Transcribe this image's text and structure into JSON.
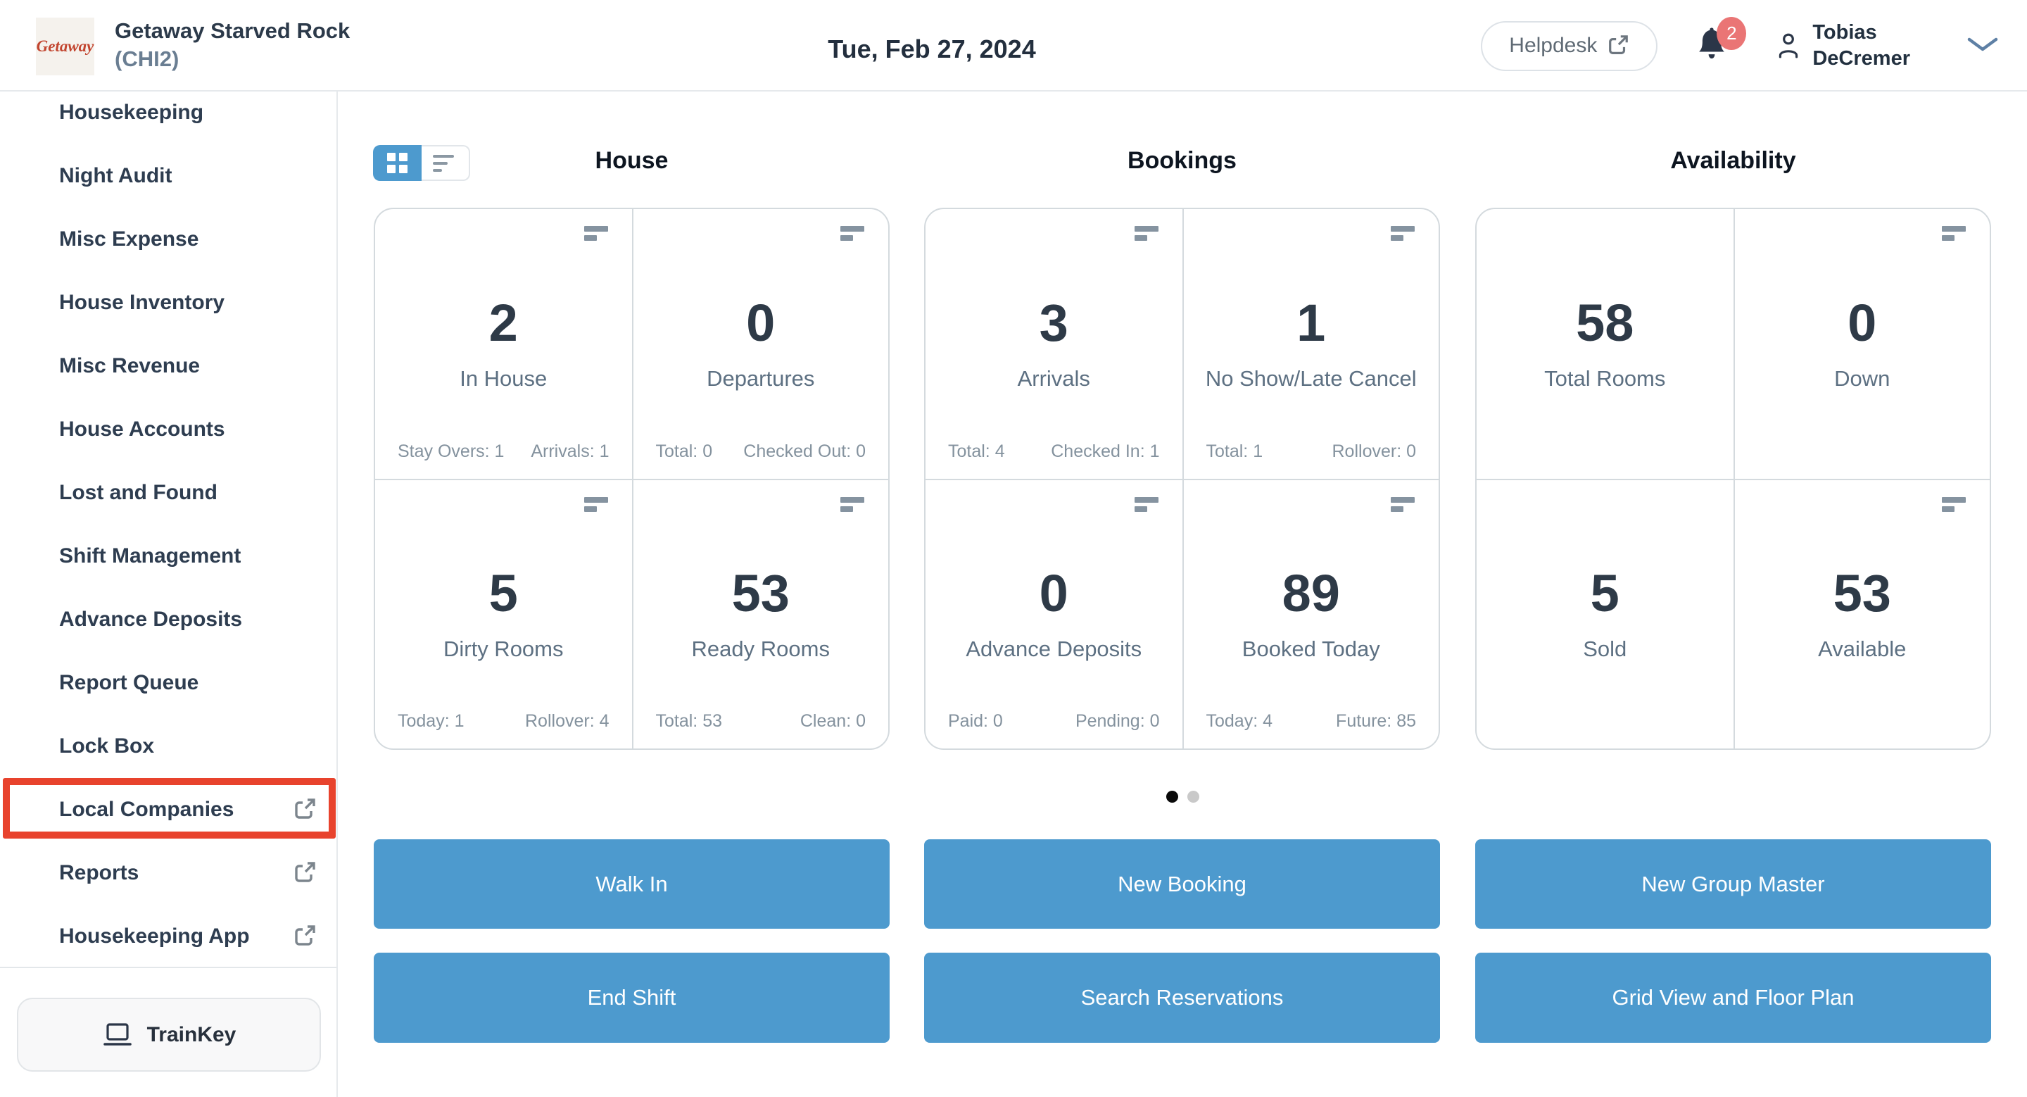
{
  "header": {
    "logo_text": "Getaway",
    "property_name": "Getaway Starved Rock",
    "property_code": "(CHI2)",
    "date": "Tue, Feb 27, 2024",
    "helpdesk_label": "Helpdesk",
    "notification_count": "2",
    "user_first_name": "Tobias",
    "user_last_name": "DeCremer"
  },
  "sidebar": {
    "items": [
      {
        "label": "Housekeeping",
        "external": false,
        "highlighted": false
      },
      {
        "label": "Night Audit",
        "external": false,
        "highlighted": false
      },
      {
        "label": "Misc Expense",
        "external": false,
        "highlighted": false
      },
      {
        "label": "House Inventory",
        "external": false,
        "highlighted": false
      },
      {
        "label": "Misc Revenue",
        "external": false,
        "highlighted": false
      },
      {
        "label": "House Accounts",
        "external": false,
        "highlighted": false
      },
      {
        "label": "Lost and Found",
        "external": false,
        "highlighted": false
      },
      {
        "label": "Shift Management",
        "external": false,
        "highlighted": false
      },
      {
        "label": "Advance Deposits",
        "external": false,
        "highlighted": false
      },
      {
        "label": "Report Queue",
        "external": false,
        "highlighted": false
      },
      {
        "label": "Lock Box",
        "external": false,
        "highlighted": false
      },
      {
        "label": "Local Companies",
        "external": true,
        "highlighted": true
      },
      {
        "label": "Reports",
        "external": true,
        "highlighted": false
      },
      {
        "label": "Housekeeping App",
        "external": true,
        "highlighted": false
      }
    ],
    "trainkey_label": "TrainKey"
  },
  "view_toggle": {
    "grid_active": true,
    "list_active": false
  },
  "dashboard": {
    "sections": [
      {
        "title": "House",
        "cards": [
          {
            "value": "2",
            "label": "In House",
            "stat_left": "Stay Overs: 1",
            "stat_right": "Arrivals: 1",
            "menu_icon": true
          },
          {
            "value": "0",
            "label": "Departures",
            "stat_left": "Total: 0",
            "stat_right": "Checked Out: 0",
            "menu_icon": true
          },
          {
            "value": "5",
            "label": "Dirty Rooms",
            "stat_left": "Today: 1",
            "stat_right": "Rollover: 4",
            "menu_icon": true
          },
          {
            "value": "53",
            "label": "Ready Rooms",
            "stat_left": "Total: 53",
            "stat_right": "Clean: 0",
            "menu_icon": true
          }
        ],
        "buttons": [
          "Walk In",
          "End Shift"
        ]
      },
      {
        "title": "Bookings",
        "cards": [
          {
            "value": "3",
            "label": "Arrivals",
            "stat_left": "Total: 4",
            "stat_right": "Checked In: 1",
            "menu_icon": true
          },
          {
            "value": "1",
            "label": "No Show/Late Cancel",
            "stat_left": "Total: 1",
            "stat_right": "Rollover: 0",
            "menu_icon": true
          },
          {
            "value": "0",
            "label": "Advance Deposits",
            "stat_left": "Paid: 0",
            "stat_right": "Pending: 0",
            "menu_icon": true
          },
          {
            "value": "89",
            "label": "Booked Today",
            "stat_left": "Today: 4",
            "stat_right": "Future: 85",
            "menu_icon": true
          }
        ],
        "buttons": [
          "New Booking",
          "Search Reservations"
        ]
      },
      {
        "title": "Availability",
        "cards": [
          {
            "value": "58",
            "label": "Total Rooms",
            "menu_icon": false
          },
          {
            "value": "0",
            "label": "Down",
            "menu_icon": true
          },
          {
            "value": "5",
            "label": "Sold",
            "menu_icon": false
          },
          {
            "value": "53",
            "label": "Available",
            "menu_icon": true
          }
        ],
        "buttons": [
          "New Group Master",
          "Grid View and Floor Plan"
        ]
      }
    ],
    "pagination": {
      "total_pages": 2,
      "active_page": 1
    }
  },
  "icons": {
    "notifications": "bell-icon",
    "user": "person-icon",
    "user_menu": "chevron-down-icon",
    "helpdesk": "external-link-icon",
    "sidebar_external": "external-link-icon",
    "trainkey": "laptop-icon",
    "card_corner": "menu-lines-icon",
    "toggle_left": "grid-icon",
    "toggle_right": "list-icon"
  },
  "colors": {
    "accent_blue": "#4d9ace",
    "highlight_red": "#e8432d",
    "badge_red": "#ea7575",
    "number_dark": "#2e3a47",
    "label_slate": "#5d7082",
    "stat_gray": "#84929e",
    "border_gray": "#d4dade",
    "logo_red": "#c2452f"
  }
}
